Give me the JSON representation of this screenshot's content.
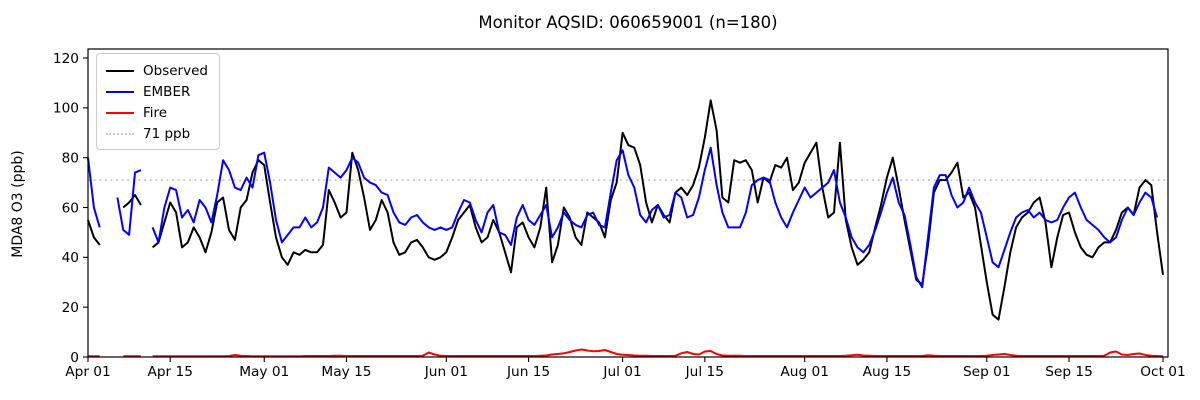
{
  "chart_data": {
    "type": "line",
    "title": "Monitor AQSID: 060659001 (n=180)",
    "ylabel": "MDA8 O3 (ppb)",
    "xlabel": "",
    "ylim": [
      0,
      123.6
    ],
    "yticks": [
      0,
      20,
      40,
      60,
      80,
      100,
      120
    ],
    "x_is_days_from": "Apr 01",
    "days_total": 183,
    "xticks": {
      "days": [
        0,
        14,
        30,
        44,
        61,
        75,
        91,
        105,
        122,
        136,
        153,
        167,
        183
      ],
      "labels": [
        "Apr 01",
        "Apr 15",
        "May 01",
        "May 15",
        "Jun 01",
        "Jun 15",
        "Jul 01",
        "Jul 15",
        "Aug 01",
        "Aug 15",
        "Sep 01",
        "Sep 15",
        "Oct 01"
      ]
    },
    "grid": "off",
    "threshold": {
      "label": "71 ppb",
      "value": 71,
      "color": "#c8c8c8",
      "style": "dotted"
    },
    "legend": {
      "position": "upper-left",
      "entries": [
        {
          "label": "Observed",
          "color": "#000000",
          "style": "solid"
        },
        {
          "label": "EMBER",
          "color": "#0000ff",
          "style": "solid"
        },
        {
          "label": "Fire",
          "color": "#ff0000",
          "style": "solid"
        },
        {
          "label": "71 ppb",
          "color": "#c8c8c8",
          "style": "dotted"
        }
      ]
    },
    "series": [
      {
        "name": "Observed",
        "color": "#000000",
        "values": [
          55,
          48,
          45,
          null,
          null,
          null,
          60,
          62,
          65,
          61,
          null,
          44,
          46,
          54,
          62,
          58,
          44,
          46,
          52,
          48,
          42,
          50,
          62,
          64,
          51,
          47,
          60,
          63,
          74,
          79,
          77,
          62,
          48,
          40,
          37,
          42,
          41,
          43,
          42,
          42,
          45,
          67,
          62,
          56,
          58,
          82,
          75,
          64,
          51,
          55,
          63,
          58,
          46,
          41,
          42,
          46,
          47,
          44,
          40,
          39,
          40,
          42,
          48,
          55,
          58,
          61,
          52,
          46,
          48,
          55,
          50,
          42,
          34,
          52,
          54,
          48,
          44,
          52,
          68,
          38,
          45,
          60,
          56,
          48,
          45,
          58,
          56,
          54,
          48,
          63,
          70,
          90,
          85,
          84,
          77,
          62,
          54,
          61,
          57,
          54,
          66,
          68,
          65,
          69,
          76,
          88,
          103,
          91,
          64,
          62,
          79,
          78,
          79,
          75,
          62,
          72,
          70,
          77,
          76,
          80,
          67,
          70,
          78,
          82,
          86,
          68,
          56,
          58,
          86,
          55,
          44,
          37,
          39,
          42,
          52,
          61,
          72,
          80,
          68,
          55,
          43,
          31,
          29,
          45,
          66,
          71,
          71,
          74,
          78,
          64,
          66,
          60,
          45,
          30,
          17,
          15,
          28,
          42,
          52,
          56,
          58,
          62,
          64,
          54,
          36,
          48,
          57,
          58,
          50,
          44,
          41,
          40,
          44,
          46,
          46,
          51,
          58,
          60,
          57,
          68,
          71,
          69,
          50,
          33
        ]
      },
      {
        "name": "EMBER",
        "color": "#0000ff",
        "values": [
          80,
          60,
          52,
          null,
          null,
          64,
          51,
          49,
          74,
          75,
          null,
          52,
          46,
          60,
          68,
          67,
          56,
          59,
          54,
          63,
          60,
          54,
          65,
          79,
          75,
          68,
          67,
          72,
          68,
          81,
          82,
          70,
          55,
          46,
          49,
          52,
          52,
          56,
          52,
          54,
          60,
          76,
          74,
          72,
          75,
          80,
          78,
          72,
          70,
          69,
          66,
          65,
          58,
          54,
          53,
          56,
          57,
          54,
          52,
          51,
          52,
          51,
          52,
          58,
          63,
          62,
          55,
          50,
          58,
          61,
          50,
          49,
          45,
          56,
          61,
          55,
          53,
          57,
          61,
          48,
          52,
          58,
          55,
          53,
          52,
          57,
          58,
          53,
          52,
          66,
          79,
          83,
          73,
          68,
          57,
          54,
          59,
          61,
          56,
          57,
          66,
          64,
          56,
          57,
          64,
          75,
          84,
          69,
          58,
          52,
          52,
          52,
          58,
          69,
          71,
          72,
          71,
          62,
          56,
          52,
          58,
          63,
          68,
          64,
          66,
          68,
          70,
          75,
          62,
          56,
          48,
          44,
          42,
          45,
          51,
          58,
          66,
          72,
          62,
          57,
          45,
          32,
          28,
          48,
          68,
          73,
          73,
          65,
          60,
          62,
          68,
          62,
          58,
          48,
          38,
          36,
          43,
          50,
          56,
          58,
          59,
          56,
          58,
          55,
          54,
          55,
          60,
          64,
          66,
          60,
          55,
          53,
          51,
          48,
          46,
          48,
          55,
          60,
          57,
          62,
          66,
          64,
          56,
          null
        ]
      },
      {
        "name": "Fire",
        "color": "#ff0000",
        "values": [
          0.3,
          0.3,
          0.3,
          null,
          null,
          null,
          0.3,
          0.3,
          0.3,
          0.3,
          null,
          0.3,
          0.3,
          0.3,
          0.3,
          0.3,
          0.3,
          0.3,
          0.3,
          0.3,
          0.3,
          0.3,
          0.3,
          0.3,
          0.4,
          0.8,
          0.5,
          0.4,
          0.3,
          0.3,
          0.3,
          0.3,
          0.3,
          0.3,
          0.3,
          0.3,
          0.3,
          0.4,
          0.4,
          0.4,
          0.4,
          0.4,
          0.5,
          0.5,
          0.4,
          0.4,
          0.4,
          0.4,
          0.4,
          0.4,
          0.4,
          0.4,
          0.4,
          0.4,
          0.4,
          0.4,
          0.4,
          0.5,
          1.8,
          1.0,
          0.5,
          0.4,
          0.4,
          0.4,
          0.4,
          0.4,
          0.4,
          0.4,
          0.4,
          0.4,
          0.4,
          0.4,
          0.4,
          0.4,
          0.4,
          0.4,
          0.4,
          0.5,
          0.6,
          1.0,
          1.2,
          1.5,
          2.0,
          2.6,
          3.0,
          2.6,
          2.3,
          2.4,
          2.8,
          2.0,
          1.2,
          0.9,
          0.8,
          0.6,
          0.5,
          0.5,
          0.4,
          0.4,
          0.4,
          0.4,
          0.5,
          1.5,
          2.0,
          1.2,
          1.0,
          2.2,
          2.4,
          1.2,
          0.6,
          0.5,
          0.5,
          0.5,
          0.4,
          0.4,
          0.4,
          0.4,
          0.4,
          0.4,
          0.4,
          0.4,
          0.4,
          0.4,
          0.4,
          0.4,
          0.4,
          0.4,
          0.4,
          0.4,
          0.4,
          0.5,
          0.7,
          0.9,
          0.6,
          0.5,
          0.4,
          0.4,
          0.4,
          0.4,
          0.4,
          0.4,
          0.4,
          0.4,
          0.4,
          0.7,
          0.5,
          0.4,
          0.4,
          0.4,
          0.4,
          0.4,
          0.4,
          0.4,
          0.4,
          0.5,
          0.8,
          1.0,
          1.2,
          0.8,
          0.5,
          0.4,
          0.4,
          0.4,
          0.4,
          0.4,
          0.4,
          0.4,
          0.4,
          0.4,
          0.4,
          0.4,
          0.4,
          0.4,
          0.4,
          0.5,
          1.8,
          2.2,
          1.0,
          0.8,
          1.2,
          1.4,
          0.8,
          0.5,
          0.4,
          0.3
        ]
      }
    ]
  }
}
